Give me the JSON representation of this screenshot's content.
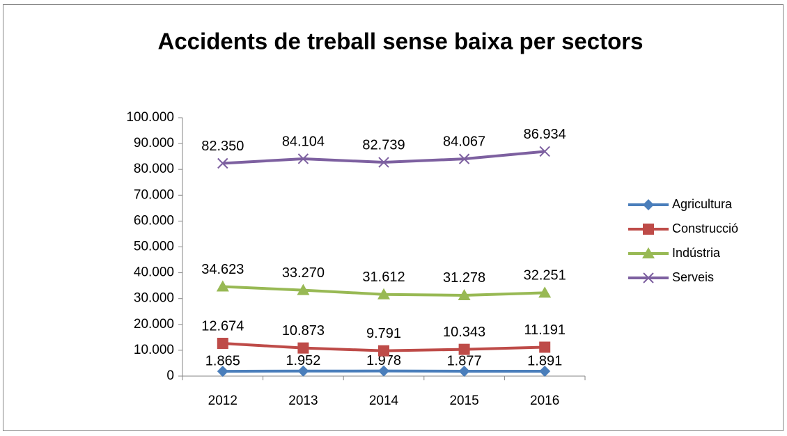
{
  "chart_data": {
    "type": "line",
    "title": "Accidents de treball sense baixa per sectors",
    "categories": [
      "2012",
      "2013",
      "2014",
      "2015",
      "2016"
    ],
    "series": [
      {
        "name": "Agricultura",
        "color": "#4a7ebb",
        "values": [
          1865,
          1952,
          1978,
          1877,
          1891
        ],
        "value_labels": [
          "1.865",
          "1.952",
          "1.978",
          "1.877",
          "1.891"
        ]
      },
      {
        "name": "Construcció",
        "color": "#be4b48",
        "values": [
          12674,
          10873,
          9791,
          10343,
          11191
        ],
        "value_labels": [
          "12.674",
          "10.873",
          "9.791",
          "10.343",
          "11.191"
        ]
      },
      {
        "name": "Indústria",
        "color": "#98b954",
        "values": [
          34623,
          33270,
          31612,
          31278,
          32251
        ],
        "value_labels": [
          "34.623",
          "33.270",
          "31.612",
          "31.278",
          "32.251"
        ]
      },
      {
        "name": "Serveis",
        "color": "#7d60a0",
        "values": [
          82350,
          84104,
          82739,
          84067,
          86934
        ],
        "value_labels": [
          "82.350",
          "84.104",
          "82.739",
          "84.067",
          "86.934"
        ]
      }
    ],
    "ylim": [
      0,
      100000
    ],
    "yticks": [
      0,
      {
        "value": 10000,
        "label": "10.000"
      },
      {
        "value": 20000,
        "label": "20.000"
      },
      {
        "value": 30000,
        "label": "30.000"
      },
      {
        "value": 40000,
        "label": "40.000"
      },
      {
        "value": 50000,
        "label": "50.000"
      },
      {
        "value": 60000,
        "label": "60.000"
      },
      {
        "value": 70000,
        "label": "70.000"
      },
      {
        "value": 80000,
        "label": "80.000"
      },
      {
        "value": 90000,
        "label": "90.000"
      },
      {
        "value": 100000,
        "label": "100.000"
      }
    ],
    "grid": false,
    "legend": "right"
  }
}
